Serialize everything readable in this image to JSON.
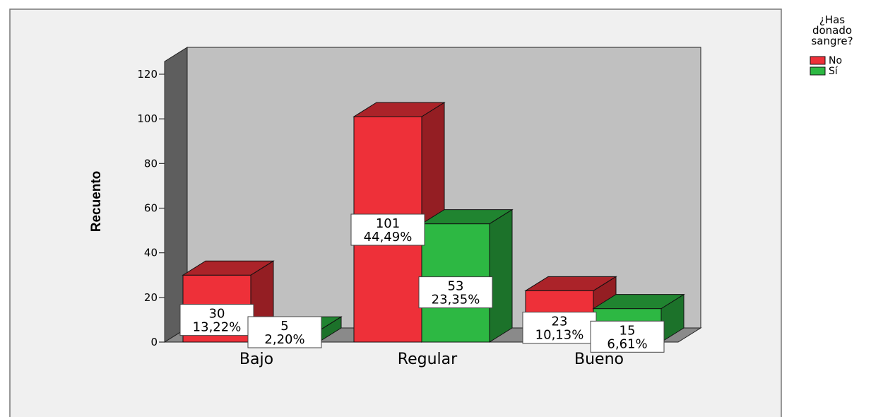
{
  "chart_data": {
    "type": "bar",
    "style": "3d-clustered",
    "categories": [
      "Bajo",
      "Regular",
      "Bueno"
    ],
    "series": [
      {
        "name": "No",
        "values": [
          30,
          101,
          23
        ],
        "labels": [
          "13,22%",
          "44,49%",
          "10,13%"
        ],
        "color": "#ee3039"
      },
      {
        "name": "Sí",
        "values": [
          5,
          53,
          15
        ],
        "labels": [
          "2,20%",
          "23,35%",
          "6,61%"
        ],
        "color": "#2db843"
      }
    ],
    "ylabel": "Recuento",
    "xlabel": "",
    "ylim": [
      0,
      120
    ],
    "yticks": [
      0,
      20,
      40,
      60,
      80,
      100,
      120
    ],
    "legend": {
      "title_lines": [
        "¿Has",
        "donado",
        "sangre?"
      ],
      "placement": "top-right"
    },
    "grid": false
  },
  "colors": {
    "frame_bg": "#f0f0f0",
    "wall": "#c0c0c0",
    "side_wall": "#5e5e5e",
    "floor": "#8a8a8a"
  }
}
